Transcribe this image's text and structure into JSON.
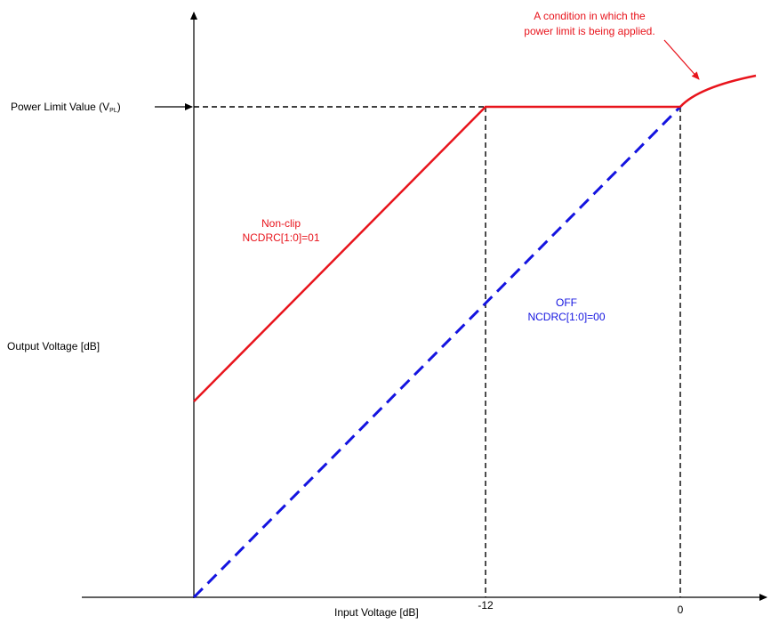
{
  "axes": {
    "x_label": "Input Voltage [dB]",
    "y_label": "Output Voltage [dB]",
    "x_ticks": [
      "-12",
      "0"
    ]
  },
  "power_limit": {
    "label_main": "Power Limit Value (V",
    "label_sub": "PL",
    "label_close": ")"
  },
  "curves": {
    "nonclip": {
      "line1": "Non-clip",
      "line2": "NCDRC[1:0]=01",
      "color": "#e8141c"
    },
    "off": {
      "line1": "OFF",
      "line2": "NCDRC[1:0]=00",
      "color": "#1414e0"
    }
  },
  "annotation": {
    "line1": "A condition in which the",
    "line2": "power limit is being applied."
  }
}
